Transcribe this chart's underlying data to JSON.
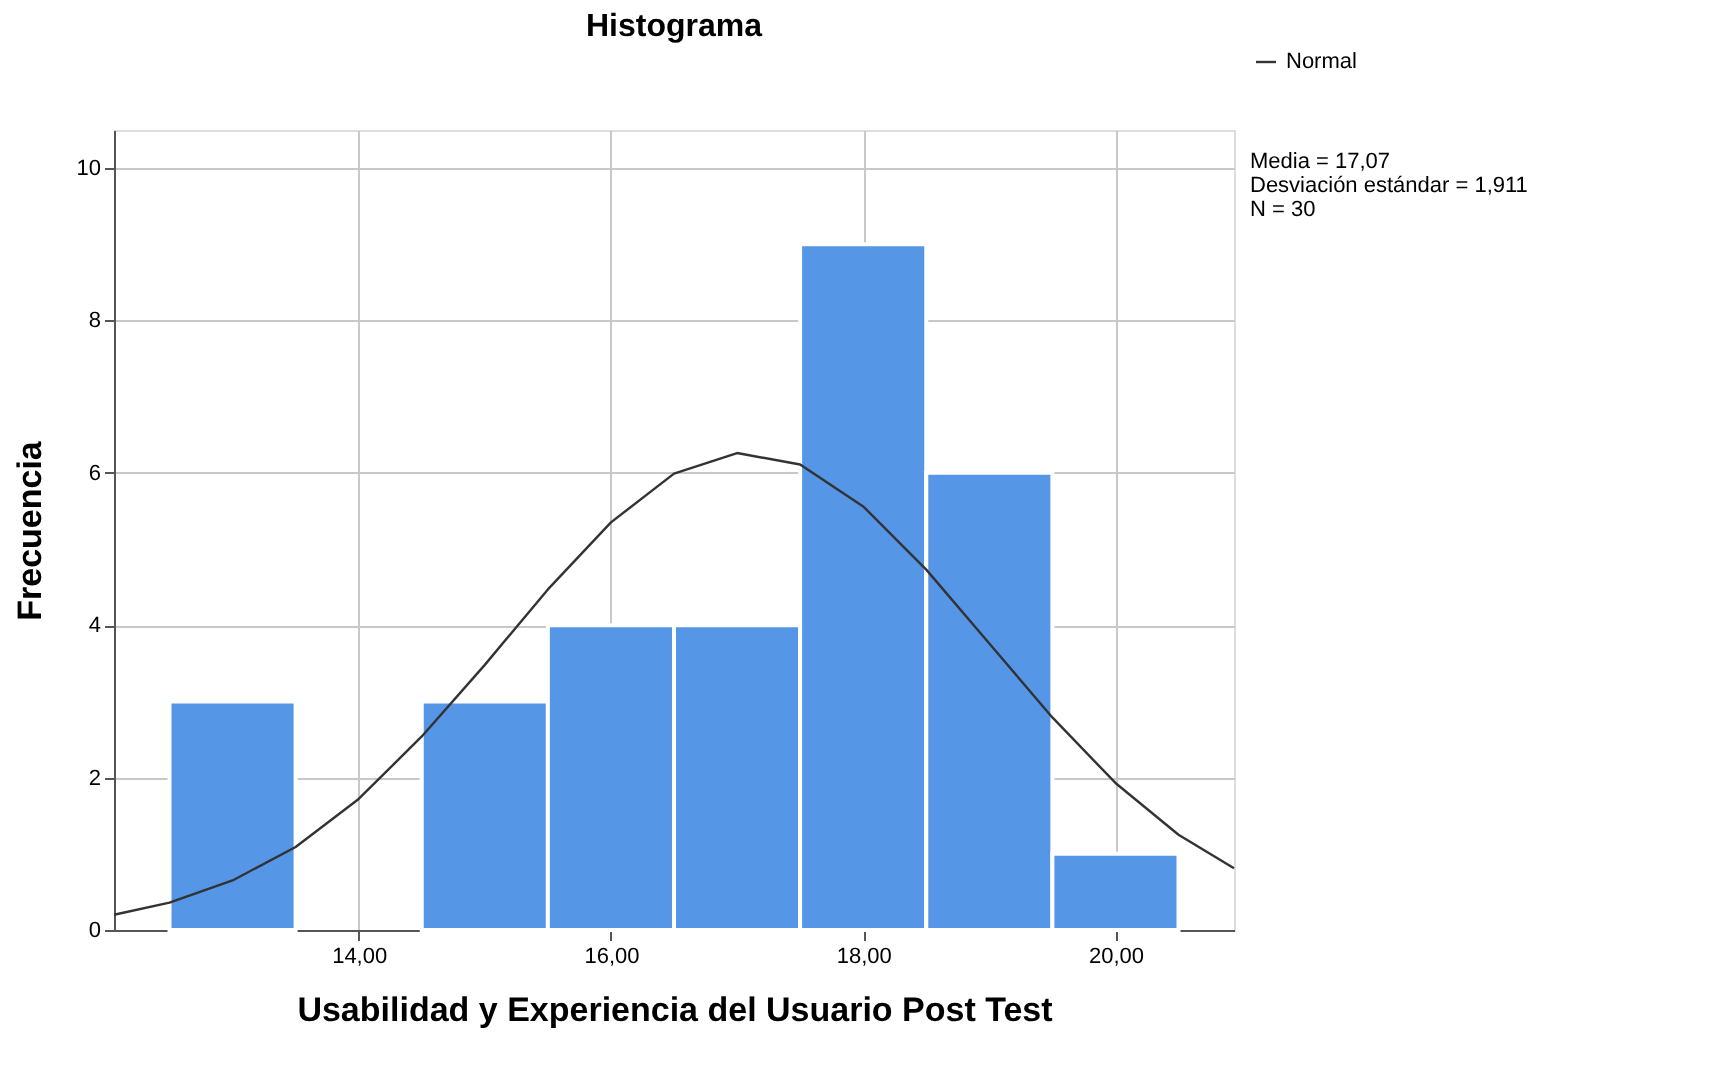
{
  "chart_data": {
    "type": "histogram",
    "title": "Histograma",
    "xlabel": "Usabilidad y Experiencia del Usuario Post Test",
    "ylabel": "Frecuencia",
    "bins": [
      12.5,
      13.5,
      14.5,
      15.5,
      16.5,
      17.5,
      18.5,
      19.5,
      20.5
    ],
    "values": [
      3,
      0,
      3,
      4,
      4,
      9,
      6,
      1
    ],
    "color": "#5596e6",
    "series": [
      {
        "type": "line",
        "name": "Normal",
        "color": "#333333",
        "x": [
          12.06,
          12.5,
          13,
          13.5,
          14,
          14.5,
          15,
          15.5,
          16,
          16.5,
          17,
          17.5,
          18,
          18.5,
          19,
          19.5,
          20,
          20.5,
          20.94
        ],
        "values": [
          0.2,
          0.36,
          0.65,
          1.09,
          1.72,
          2.54,
          3.48,
          4.47,
          5.35,
          5.99,
          6.26,
          6.11,
          5.56,
          4.73,
          3.76,
          2.79,
          1.93,
          1.25,
          0.81
        ]
      }
    ],
    "xlim": [
      12.06,
      20.94
    ],
    "xticks": [
      {
        "value": 14,
        "label": "14,00"
      },
      {
        "value": 16,
        "label": "16,00"
      },
      {
        "value": 18,
        "label": "18,00"
      },
      {
        "value": 20,
        "label": "20,00"
      }
    ],
    "ylim": [
      0,
      10.5
    ],
    "yticks": [
      0,
      2,
      4,
      6,
      8,
      10
    ],
    "grid": true,
    "legend": "top right",
    "annotations": [
      "Media = 17,07",
      "Desviación estándar = 1,911",
      "N = 30"
    ]
  }
}
